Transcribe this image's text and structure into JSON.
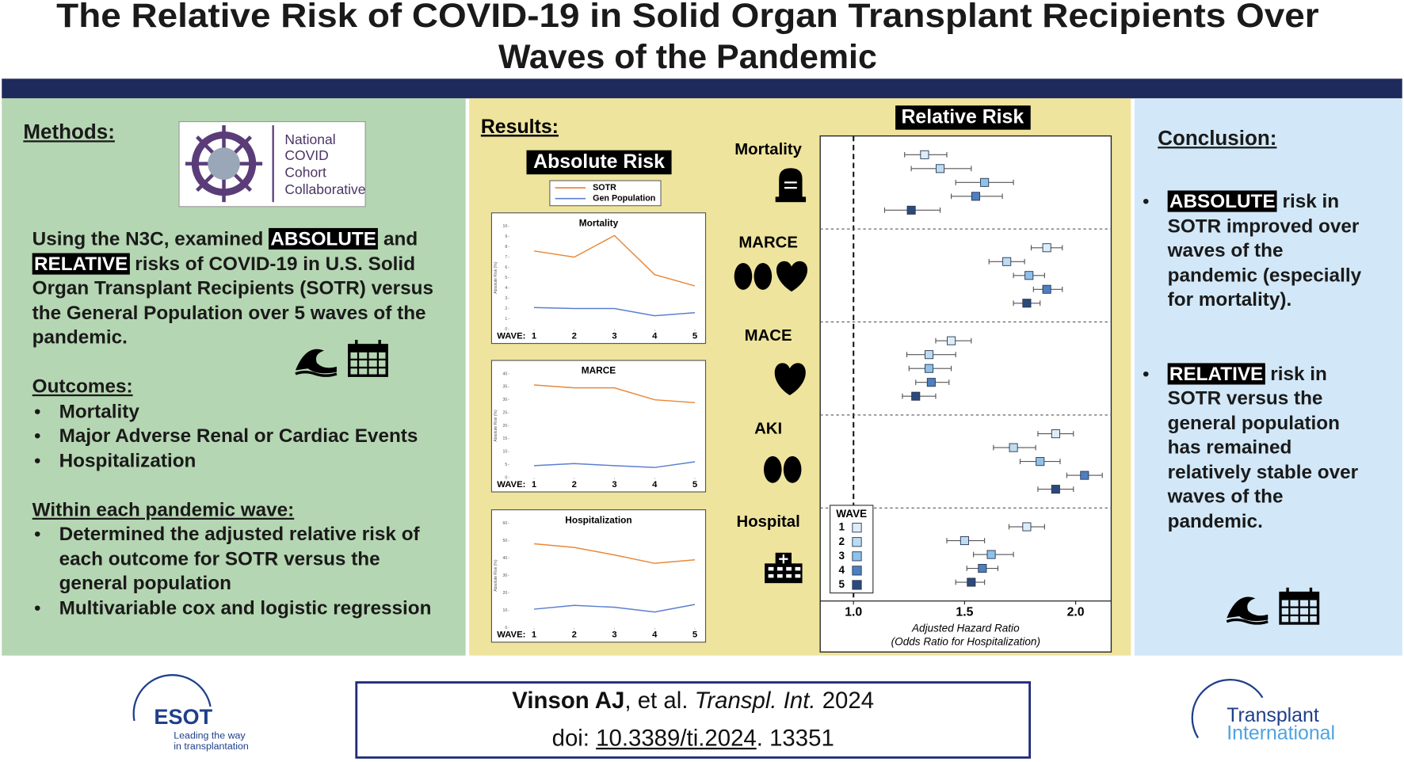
{
  "title": [
    "The Relative Risk of COVID-19 in Solid Organ Transplant Recipients Over",
    "Waves of the Pandemic"
  ],
  "methods": {
    "heading": "Methods:",
    "logo": [
      "National",
      "COVID",
      "Cohort",
      "Collaborative"
    ],
    "paragraph": [
      {
        "text": "Using the N3C, examined "
      },
      {
        "text": "ABSOLUTE",
        "highlight": true
      },
      {
        "text": " and "
      },
      {
        "text": "RELATIVE",
        "highlight": true
      },
      {
        "text": " risks of COVID-19 in U.S. Solid Organ Transplant Recipients (SOTR) versus the General Population over 5 waves of the pandemic."
      }
    ],
    "outcomes_heading": "Outcomes:",
    "outcomes": [
      "Mortality",
      "Major Adverse Renal or Cardiac Events",
      "Hospitalization"
    ],
    "within_heading": "Within each pandemic wave:",
    "within": [
      "Determined the adjusted relative risk of each outcome for SOTR versus the general population",
      "Multivariable cox and logistic regression"
    ]
  },
  "results": {
    "heading": "Results:",
    "absolute_label": "Absolute Risk"
  },
  "chart_data": [
    {
      "type": "line",
      "title": "Mortality",
      "x_label": "WAVE:",
      "y_label": "Absolute Risk (%)",
      "x": [
        1,
        2,
        3,
        4,
        5
      ],
      "xlim": [
        0.3,
        5.2
      ],
      "xticks": [
        1,
        2,
        3,
        4,
        5
      ],
      "ylim": [
        0,
        10
      ],
      "yticks": [
        0,
        1,
        2,
        3,
        4,
        5,
        6,
        7,
        8,
        9,
        10
      ],
      "series": [
        {
          "name": "SOTR",
          "color": "#e8883a",
          "values": [
            7.6,
            7.0,
            9.1,
            5.3,
            4.2
          ]
        },
        {
          "name": "Gen Population",
          "color": "#5b7fcf",
          "values": [
            2.1,
            2.0,
            2.0,
            1.3,
            1.6
          ]
        }
      ]
    },
    {
      "type": "line",
      "title": "MARCE",
      "x_label": "WAVE:",
      "y_label": "Absolute Risk (%)",
      "x": [
        1,
        2,
        3,
        4,
        5
      ],
      "xlim": [
        0.3,
        5.2
      ],
      "xticks": [
        1,
        2,
        3,
        4,
        5
      ],
      "ylim": [
        0,
        40
      ],
      "yticks": [
        0,
        5,
        10,
        15,
        20,
        25,
        30,
        35,
        40
      ],
      "series": [
        {
          "name": "SOTR",
          "color": "#e8883a",
          "values": [
            35.7,
            34.6,
            34.6,
            30,
            28.9
          ]
        },
        {
          "name": "Gen Population",
          "color": "#5b7fcf",
          "values": [
            4.6,
            5.4,
            4.6,
            3.9,
            6.1
          ]
        }
      ]
    },
    {
      "type": "line",
      "title": "Hospitalization",
      "x_label": "WAVE:",
      "y_label": "Absolute Risk (%)",
      "x": [
        1,
        2,
        3,
        4,
        5
      ],
      "xlim": [
        0.3,
        5.2
      ],
      "xticks": [
        1,
        2,
        3,
        4,
        5
      ],
      "ylim": [
        0,
        60
      ],
      "yticks": [
        0,
        10,
        20,
        30,
        40,
        50,
        60
      ],
      "series": [
        {
          "name": "SOTR",
          "color": "#e8883a",
          "values": [
            48.2,
            46.1,
            41.8,
            37,
            39
          ]
        },
        {
          "name": "Gen Population",
          "color": "#5b7fcf",
          "values": [
            10.7,
            12.9,
            11.8,
            9.1,
            13.4
          ]
        }
      ]
    },
    {
      "type": "forest",
      "title": "Relative Risk",
      "x_label": [
        "Adjusted Hazard Ratio",
        "(Odds Ratio for Hospitalization)"
      ],
      "xlim": [
        0.85,
        2.16
      ],
      "xticks": [
        {
          "value": 1,
          "label": "1.0"
        },
        {
          "value": 1.5,
          "label": "1.5"
        },
        {
          "value": 2,
          "label": "2.0"
        }
      ],
      "reference": 1,
      "legend_title": "WAVE",
      "waves": [
        "1",
        "2",
        "3",
        "4",
        "5"
      ],
      "colors": [
        "#dcedf9",
        "#bcdcf2",
        "#8fc2ea",
        "#4d7fc1",
        "#2b4a7a"
      ],
      "groups": [
        {
          "name": "Mortality",
          "values": [
            1.32,
            1.39,
            1.59,
            1.55,
            1.26
          ],
          "lower": [
            1.23,
            1.26,
            1.46,
            1.44,
            1.14
          ],
          "upper": [
            1.42,
            1.53,
            1.72,
            1.67,
            1.39
          ]
        },
        {
          "name": "MARCE",
          "values": [
            1.87,
            1.69,
            1.79,
            1.87,
            1.78
          ],
          "lower": [
            1.8,
            1.61,
            1.72,
            1.81,
            1.72
          ],
          "upper": [
            1.94,
            1.77,
            1.86,
            1.94,
            1.84
          ]
        },
        {
          "name": "MACE",
          "values": [
            1.44,
            1.34,
            1.34,
            1.35,
            1.28
          ],
          "lower": [
            1.37,
            1.24,
            1.25,
            1.28,
            1.22
          ],
          "upper": [
            1.53,
            1.46,
            1.44,
            1.43,
            1.37
          ]
        },
        {
          "name": "AKI",
          "values": [
            1.91,
            1.72,
            1.84,
            2.04,
            1.91
          ],
          "lower": [
            1.83,
            1.63,
            1.75,
            1.96,
            1.83
          ],
          "upper": [
            1.99,
            1.82,
            1.93,
            2.12,
            1.99
          ]
        },
        {
          "name": "Hospital",
          "values": [
            1.78,
            1.5,
            1.62,
            1.58,
            1.53
          ],
          "lower": [
            1.7,
            1.42,
            1.54,
            1.51,
            1.46
          ],
          "upper": [
            1.86,
            1.59,
            1.72,
            1.65,
            1.59
          ]
        }
      ]
    }
  ],
  "conclusion": {
    "heading": "Conclusion:",
    "bullets": [
      [
        {
          "text": "ABSOLUTE",
          "highlight": true
        },
        {
          "text": " risk in SOTR improved over waves of the pandemic (especially for mortality)."
        }
      ],
      [
        {
          "text": "RELATIVE",
          "highlight": true
        },
        {
          "text": " risk in SOTR versus the general population has remained relatively stable over waves of the pandemic."
        }
      ]
    ]
  },
  "footer": {
    "esot": {
      "name": "ESOT",
      "tagline": [
        "Leading the way",
        "in transplantation"
      ]
    },
    "citation": {
      "author": "Vinson AJ",
      "etal": ", et al. ",
      "journal": "Transpl. Int.",
      "year": " 2024",
      "doi_prefix": "doi: ",
      "doi": "10.3389/ti.2024",
      "doi_suffix": ". 13351"
    },
    "journal_logo": [
      "Transplant",
      "International"
    ]
  }
}
